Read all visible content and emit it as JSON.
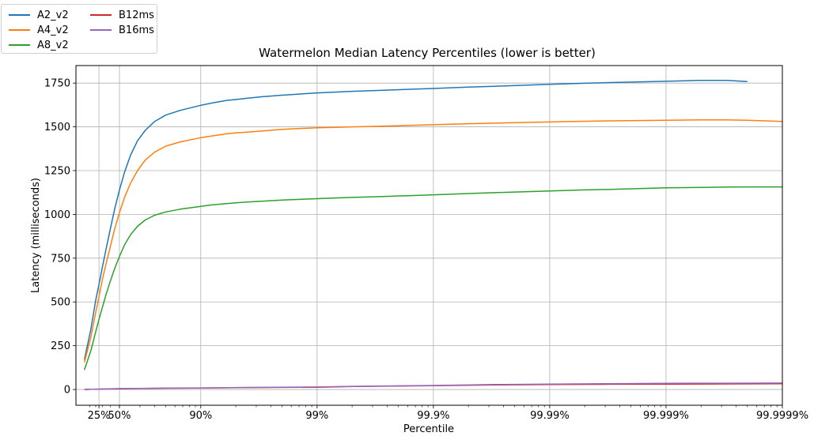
{
  "chart_data": {
    "type": "line",
    "title": "Watermelon Median Latency Percentiles (lower is better)",
    "xlabel": "Percentile",
    "ylabel": "Latency (milliseconds)",
    "x_scale": "log scale of 1/(1 - percentile)",
    "x_ticks": [
      {
        "label": "25%",
        "value": 25
      },
      {
        "label": "50%",
        "value": 50
      },
      {
        "label": "90%",
        "value": 90
      },
      {
        "label": "99%",
        "value": 99
      },
      {
        "label": "99.9%",
        "value": 99.9
      },
      {
        "label": "99.99%",
        "value": 99.99
      },
      {
        "label": "99.999%",
        "value": 99.999
      },
      {
        "label": "99.9999%",
        "value": 99.9999
      }
    ],
    "ylim": [
      -90,
      1850
    ],
    "y_ticks": [
      0,
      250,
      500,
      750,
      1000,
      1250,
      1500,
      1750
    ],
    "grid": true,
    "legend_position": "top-left, outside plot",
    "series": [
      {
        "name": "A2_v2",
        "color": "#1f77b4",
        "x": [
          0,
          12,
          20,
          25,
          30,
          35,
          40,
          45,
          50,
          55,
          60,
          65,
          70,
          75,
          80,
          85,
          90,
          92,
          94,
          95,
          96,
          97,
          98,
          99,
          99.5,
          99.7,
          99.9,
          99.95,
          99.97,
          99.99,
          99.995,
          99.997,
          99.999,
          99.9995,
          99.9997,
          99.9998
        ],
        "y": [
          170,
          345,
          510,
          600,
          700,
          805,
          915,
          1030,
          1140,
          1245,
          1340,
          1420,
          1480,
          1530,
          1567,
          1594,
          1623,
          1636,
          1651,
          1656,
          1663,
          1672,
          1681,
          1694,
          1703,
          1708,
          1719,
          1727,
          1732,
          1743,
          1749,
          1753,
          1760,
          1765,
          1765,
          1759
        ]
      },
      {
        "name": "A4_v2",
        "color": "#ff7f0e",
        "x": [
          0,
          12,
          20,
          25,
          30,
          35,
          40,
          45,
          50,
          55,
          60,
          65,
          70,
          75,
          80,
          85,
          90,
          92,
          94,
          95,
          96,
          97,
          98,
          99,
          99.5,
          99.7,
          99.9,
          99.95,
          99.97,
          99.99,
          99.995,
          99.997,
          99.999,
          99.9995,
          99.9997,
          99.9998,
          99.9999
        ],
        "y": [
          155,
          300,
          440,
          530,
          630,
          720,
          815,
          915,
          1010,
          1100,
          1180,
          1250,
          1310,
          1355,
          1390,
          1414,
          1438,
          1448,
          1460,
          1465,
          1470,
          1476,
          1486,
          1495,
          1500,
          1503,
          1512,
          1518,
          1521,
          1528,
          1532,
          1534,
          1538,
          1540,
          1540,
          1538,
          1531
        ]
      },
      {
        "name": "A8_v2",
        "color": "#2ca02c",
        "x": [
          0,
          12,
          20,
          25,
          30,
          35,
          40,
          45,
          50,
          55,
          60,
          65,
          70,
          75,
          80,
          85,
          90,
          92,
          94,
          95,
          96,
          97,
          98,
          99,
          99.5,
          99.7,
          99.9,
          99.95,
          99.97,
          99.99,
          99.995,
          99.997,
          99.999,
          99.9995,
          99.9997,
          99.9998,
          99.9999
        ],
        "y": [
          112,
          222,
          330,
          400,
          470,
          545,
          618,
          690,
          760,
          828,
          885,
          932,
          968,
          995,
          1014,
          1030,
          1046,
          1054,
          1062,
          1066,
          1071,
          1075,
          1082,
          1090,
          1097,
          1101,
          1112,
          1119,
          1124,
          1134,
          1140,
          1143,
          1152,
          1154,
          1156,
          1157,
          1157
        ]
      },
      {
        "name": "B12ms",
        "color": "#d62728",
        "x": [
          0,
          12,
          25,
          35,
          50,
          65,
          80,
          90,
          95,
          99,
          99.5,
          99.9,
          99.97,
          99.99,
          99.997,
          99.999,
          99.9997,
          99.9999
        ],
        "y": [
          0,
          1,
          2,
          3,
          4,
          5,
          7,
          8,
          10,
          13,
          17,
          22,
          26,
          28,
          30,
          31,
          32,
          33
        ]
      },
      {
        "name": "B16ms",
        "color": "#9467bd",
        "x": [
          0,
          12,
          25,
          35,
          50,
          65,
          80,
          90,
          95,
          99,
          99.5,
          99.9,
          99.97,
          99.99,
          99.997,
          99.999,
          99.9997,
          99.9999
        ],
        "y": [
          0,
          1,
          2,
          3,
          5,
          6,
          8,
          9,
          11,
          14,
          18,
          23,
          28,
          31,
          33,
          35,
          36,
          37
        ]
      }
    ]
  }
}
